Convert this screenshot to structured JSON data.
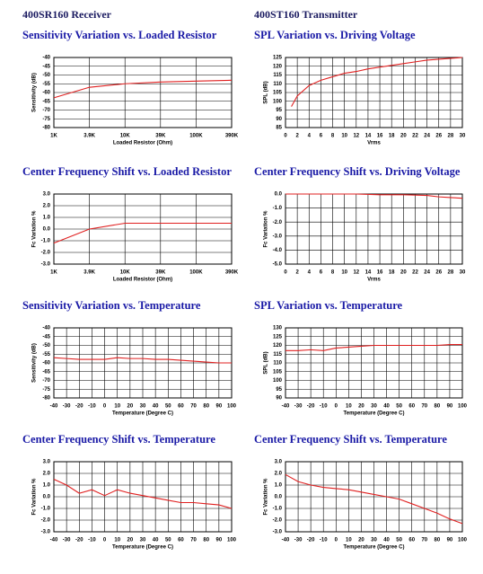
{
  "headings": [
    "400SR160 Receiver",
    "400ST160 Transmitter"
  ],
  "chart_data": [
    {
      "type": "line",
      "title": "Sensitivity Variation vs. Loaded Resistor",
      "xlabel": "Loaded Resistor (Ohm)",
      "ylabel": "Sensitivity (dB)",
      "categories": [
        "1K",
        "3.9K",
        "10K",
        "39K",
        "100K",
        "390K"
      ],
      "series": [
        {
          "color": "#e02020",
          "values": [
            -63,
            -57,
            -55,
            -54,
            -53.5,
            -53
          ]
        }
      ],
      "ylim": [
        -80,
        -40
      ],
      "yticks": [
        -40,
        -45,
        -50,
        -55,
        -60,
        -65,
        -70,
        -75,
        -80
      ],
      "grid": true
    },
    {
      "type": "line",
      "title": "SPL Variation vs. Driving Voltage",
      "xlabel": "Vrms",
      "ylabel": "SPL (dB)",
      "x": [
        1,
        2,
        4,
        6,
        8,
        10,
        12,
        14,
        16,
        18,
        20,
        22,
        24,
        26,
        28,
        30
      ],
      "series": [
        {
          "color": "#e02020",
          "values": [
            97,
            103,
            109,
            112,
            114,
            116,
            117,
            118.5,
            119.5,
            120.5,
            121.5,
            122.5,
            123.5,
            124,
            124.5,
            125
          ]
        }
      ],
      "xlim": [
        0,
        30
      ],
      "xticks": [
        0,
        2,
        4,
        6,
        8,
        10,
        12,
        14,
        16,
        18,
        20,
        22,
        24,
        26,
        28,
        30
      ],
      "ylim": [
        85,
        125
      ],
      "yticks": [
        125,
        120,
        115,
        110,
        105,
        100,
        95,
        90,
        85
      ],
      "grid": true
    },
    {
      "type": "line",
      "title": "Center Frequency Shift vs. Loaded Resistor",
      "xlabel": "Loaded Resistor (Ohm)",
      "ylabel": "Fc Variation %",
      "categories": [
        "1K",
        "3.9K",
        "10K",
        "39K",
        "100K",
        "390K"
      ],
      "series": [
        {
          "color": "#e02020",
          "values": [
            -1.2,
            0,
            0.5,
            0.5,
            0.5,
            0.5
          ]
        }
      ],
      "ylim": [
        -3,
        3
      ],
      "yticks": [
        {
          "value": 3,
          "label": "3.0"
        },
        {
          "value": 2,
          "label": "2.0"
        },
        {
          "value": 1,
          "label": "1.0"
        },
        {
          "value": 0,
          "label": "0.0"
        },
        {
          "value": -1,
          "label": "-1.0"
        },
        {
          "value": -2,
          "label": "-2.0"
        },
        {
          "value": -3,
          "label": "-3.0"
        }
      ],
      "grid": true
    },
    {
      "type": "line",
      "title": "Center Frequency Shift vs. Driving Voltage",
      "xlabel": "Vrms",
      "ylabel": "Fc Variation %",
      "x": [
        0,
        4,
        8,
        12,
        16,
        20,
        24,
        26,
        28,
        30
      ],
      "series": [
        {
          "color": "#e02020",
          "values": [
            0,
            0,
            0,
            0,
            -0.05,
            -0.05,
            -0.1,
            -0.2,
            -0.25,
            -0.3
          ]
        }
      ],
      "xlim": [
        0,
        30
      ],
      "xticks": [
        0,
        2,
        4,
        6,
        8,
        10,
        12,
        14,
        16,
        18,
        20,
        22,
        24,
        26,
        28,
        30
      ],
      "ylim": [
        -5,
        0
      ],
      "yticks": [
        {
          "value": 0,
          "label": "0.0"
        },
        {
          "value": -1,
          "label": "-1.0"
        },
        {
          "value": -2,
          "label": "-2.0"
        },
        {
          "value": -3,
          "label": "-3.0"
        },
        {
          "value": -4,
          "label": "-4.0"
        },
        {
          "value": -5,
          "label": "-5.0"
        }
      ],
      "grid": true
    },
    {
      "type": "line",
      "title": "Sensitivity Variation vs. Temperature",
      "xlabel": "Temperature (Degree C)",
      "ylabel": "Sensitivity (dB)",
      "x": [
        -40,
        -30,
        -20,
        -10,
        0,
        10,
        20,
        30,
        40,
        50,
        60,
        70,
        80,
        90,
        100
      ],
      "series": [
        {
          "color": "#e02020",
          "values": [
            -57,
            -57.5,
            -58,
            -58,
            -58,
            -57,
            -57.5,
            -57.5,
            -58,
            -58,
            -58.5,
            -59,
            -59.5,
            -60,
            -60
          ]
        }
      ],
      "xlim": [
        -40,
        100
      ],
      "xticks": [
        -40,
        -30,
        -20,
        -10,
        0,
        10,
        20,
        30,
        40,
        50,
        60,
        70,
        80,
        90,
        100
      ],
      "ylim": [
        -80,
        -40
      ],
      "yticks": [
        -40,
        -45,
        -50,
        -55,
        -60,
        -65,
        -70,
        -75,
        -80
      ],
      "grid": true
    },
    {
      "type": "line",
      "title": "SPL Variation vs. Temperature",
      "xlabel": "Temperature (Degree C)",
      "ylabel": "SPL (dB)",
      "x": [
        -40,
        -30,
        -20,
        -10,
        0,
        10,
        20,
        30,
        40,
        50,
        60,
        70,
        80,
        90,
        100
      ],
      "series": [
        {
          "color": "#e02020",
          "values": [
            117,
            117,
            117.5,
            117,
            118.5,
            119,
            119.5,
            120,
            120,
            120,
            120,
            120,
            120,
            120.5,
            120.5
          ]
        }
      ],
      "xlim": [
        -40,
        100
      ],
      "xticks": [
        -40,
        -30,
        -20,
        -10,
        0,
        10,
        20,
        30,
        40,
        50,
        60,
        70,
        80,
        90,
        100
      ],
      "ylim": [
        90,
        130
      ],
      "yticks": [
        130,
        125,
        120,
        115,
        110,
        105,
        100,
        95,
        90
      ],
      "grid": true
    },
    {
      "type": "line",
      "title": "Center Frequency Shift vs. Temperature",
      "xlabel": "Temperature (Degree C)",
      "ylabel": "Fc Variation %",
      "x": [
        -40,
        -30,
        -20,
        -10,
        0,
        10,
        20,
        30,
        40,
        50,
        60,
        70,
        80,
        90,
        100
      ],
      "series": [
        {
          "color": "#e02020",
          "values": [
            1.5,
            1,
            0.3,
            0.6,
            0.1,
            0.6,
            0.3,
            0.1,
            -0.1,
            -0.3,
            -0.5,
            -0.5,
            -0.6,
            -0.7,
            -1
          ]
        }
      ],
      "xlim": [
        -40,
        100
      ],
      "xticks": [
        -40,
        -30,
        -20,
        -10,
        0,
        10,
        20,
        30,
        40,
        50,
        60,
        70,
        80,
        90,
        100
      ],
      "ylim": [
        -3,
        3
      ],
      "yticks": [
        {
          "value": 3,
          "label": "3.0"
        },
        {
          "value": 2,
          "label": "2.0"
        },
        {
          "value": 1,
          "label": "1.0"
        },
        {
          "value": 0,
          "label": "0.0"
        },
        {
          "value": -1,
          "label": "-1.0"
        },
        {
          "value": -2,
          "label": "-2.0"
        },
        {
          "value": -3,
          "label": "-3.0"
        }
      ],
      "grid": true
    },
    {
      "type": "line",
      "title": "Center Frequency Shift vs. Temperature",
      "xlabel": "Temperature (Degree C)",
      "ylabel": "Fc Variation %",
      "x": [
        -40,
        -30,
        -20,
        -10,
        0,
        10,
        20,
        30,
        40,
        50,
        60,
        70,
        80,
        90,
        100
      ],
      "series": [
        {
          "color": "#e02020",
          "values": [
            1.9,
            1.3,
            1,
            0.8,
            0.7,
            0.6,
            0.4,
            0.2,
            0,
            -0.2,
            -0.6,
            -1,
            -1.4,
            -1.9,
            -2.3
          ]
        }
      ],
      "xlim": [
        -40,
        100
      ],
      "xticks": [
        -40,
        -30,
        -20,
        -10,
        0,
        10,
        20,
        30,
        40,
        50,
        60,
        70,
        80,
        90,
        100
      ],
      "ylim": [
        -3,
        3
      ],
      "yticks": [
        {
          "value": 3,
          "label": "3.0"
        },
        {
          "value": 2,
          "label": "2.0"
        },
        {
          "value": 1,
          "label": "1.0"
        },
        {
          "value": 0,
          "label": "0.0"
        },
        {
          "value": -1,
          "label": "-1.0"
        },
        {
          "value": -2,
          "label": "-2.0"
        },
        {
          "value": -3,
          "label": "-3.0"
        }
      ],
      "grid": true
    }
  ]
}
